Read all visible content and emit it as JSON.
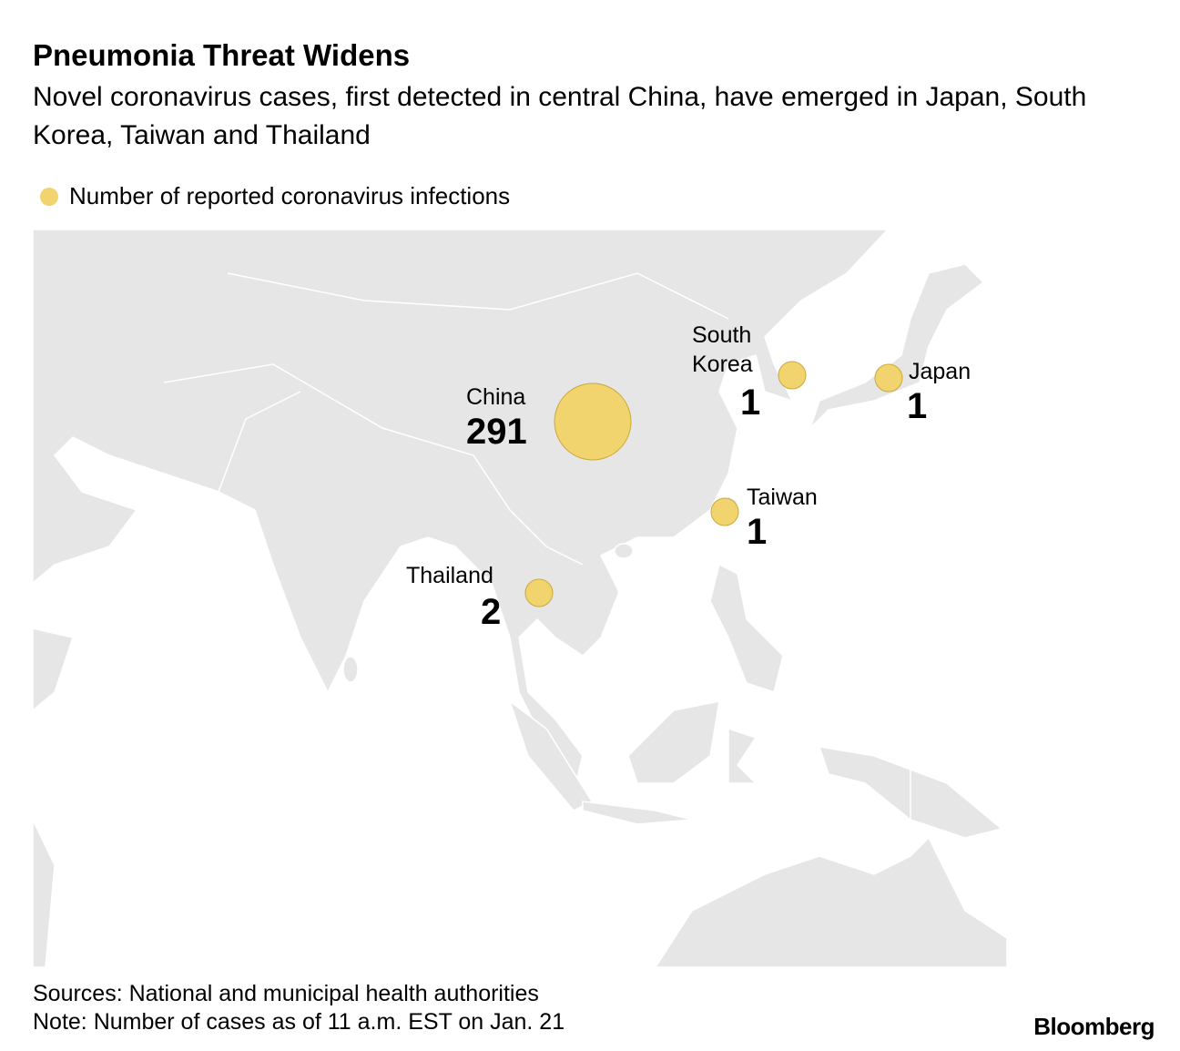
{
  "chart_data": {
    "type": "bubble-map",
    "title": "Pneumonia Threat Widens",
    "subtitle": "Novel coronavirus cases, first detected in central China, have emerged in Japan, South Korea, Taiwan and Thailand",
    "legend": "Number of reported coronavirus infections",
    "color": "#f2d46f",
    "places": [
      {
        "name": "China",
        "value": 291
      },
      {
        "name": "South Korea",
        "value": 1
      },
      {
        "name": "Japan",
        "value": 1
      },
      {
        "name": "Taiwan",
        "value": 1
      },
      {
        "name": "Thailand",
        "value": 2
      }
    ],
    "source": "Sources: National and municipal health authorities",
    "note": "Note: Number of cases as of 11 a.m. EST on Jan. 21"
  },
  "logo": "Bloomberg"
}
